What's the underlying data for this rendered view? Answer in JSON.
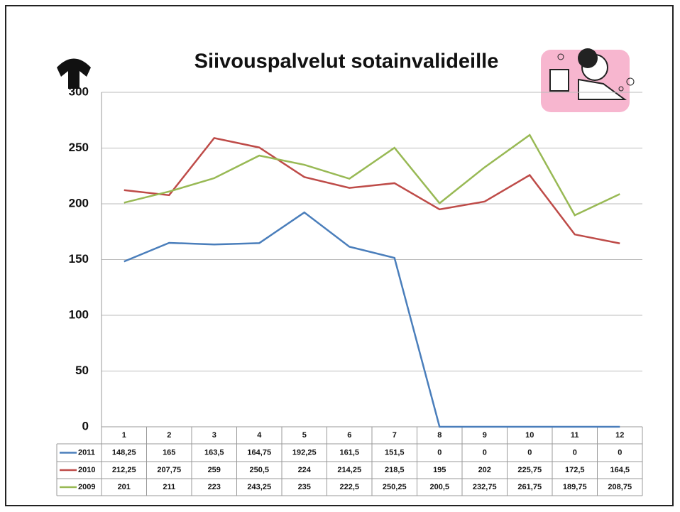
{
  "chart_data": {
    "type": "line",
    "title": "Siivouspalvelut sotainvalideille",
    "categories": [
      "1",
      "2",
      "3",
      "4",
      "5",
      "6",
      "7",
      "8",
      "9",
      "10",
      "11",
      "12"
    ],
    "series": [
      {
        "name": "2011",
        "color": "#4a7ebb",
        "values": [
          148.25,
          165,
          163.5,
          164.75,
          192.25,
          161.5,
          151.5,
          0,
          0,
          0,
          0,
          0
        ],
        "value_labels": [
          "148,25",
          "165",
          "163,5",
          "164,75",
          "192,25",
          "161,5",
          "151,5",
          "0",
          "0",
          "0",
          "0",
          "0"
        ]
      },
      {
        "name": "2010",
        "color": "#be4b48",
        "values": [
          212.25,
          207.75,
          259,
          250.5,
          224,
          214.25,
          218.5,
          195,
          202,
          225.75,
          172.5,
          164.5
        ],
        "value_labels": [
          "212,25",
          "207,75",
          "259",
          "250,5",
          "224",
          "214,25",
          "218,5",
          "195",
          "202",
          "225,75",
          "172,5",
          "164,5"
        ]
      },
      {
        "name": "2009",
        "color": "#98b954",
        "values": [
          201,
          211,
          223,
          243.25,
          235,
          222.5,
          250.25,
          200.5,
          232.75,
          261.75,
          189.75,
          208.75
        ],
        "value_labels": [
          "201",
          "211",
          "223",
          "243,25",
          "235",
          "222,5",
          "250,25",
          "200,5",
          "232,75",
          "261,75",
          "189,75",
          "208,75"
        ]
      }
    ],
    "ylim": [
      0,
      300
    ],
    "yticks": [
      0,
      50,
      100,
      150,
      200,
      250,
      300
    ],
    "grid": true
  }
}
